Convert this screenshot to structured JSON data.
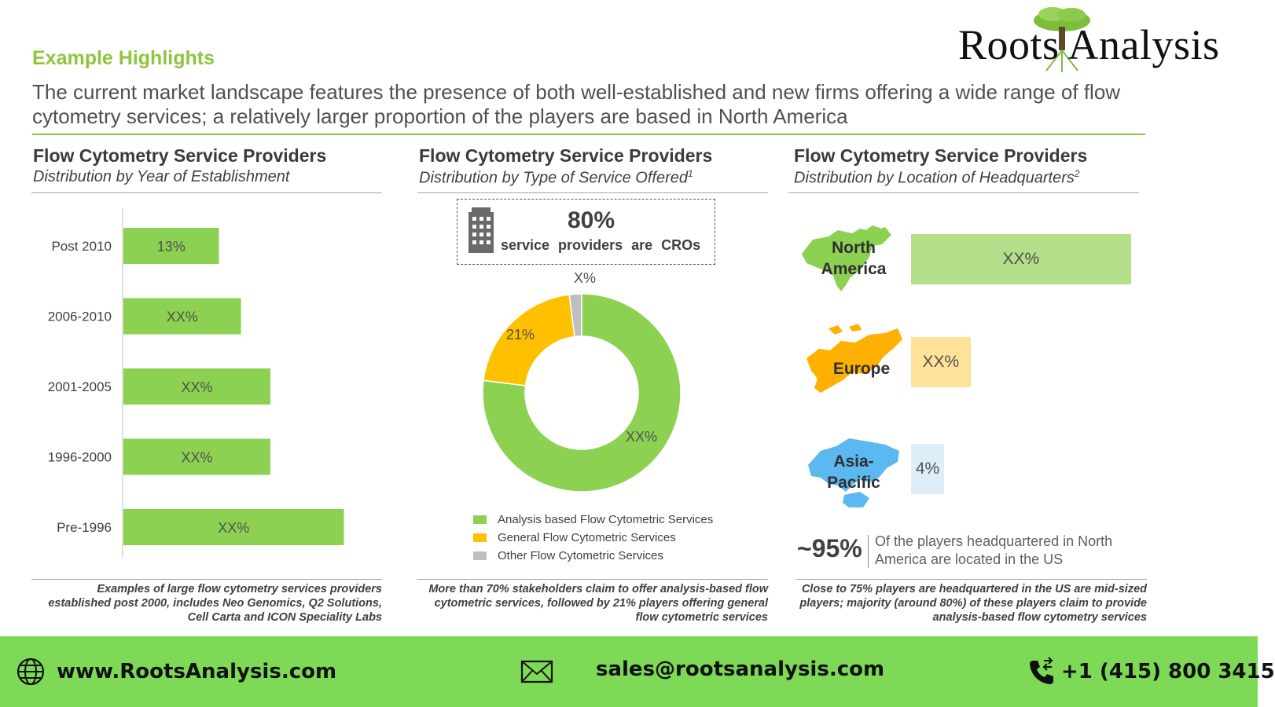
{
  "brand": {
    "name": "Roots Analysis"
  },
  "header": {
    "section_label": "Example Highlights",
    "headline": "The current market landscape features the presence of both well-established and new firms offering a wide range of flow cytometry services; a relatively larger proportion of the players are based in North America"
  },
  "panels": {
    "year": {
      "title": "Flow Cytometry Service Providers",
      "subtitle": "Distribution by Year of Establishment",
      "footnote": "Examples of large flow cytometry services providers established post 2000, includes Neo Genomics, Q2 Solutions, Cell Carta and ICON Speciality Labs"
    },
    "service": {
      "title": "Flow Cytometry Service Providers",
      "subtitle": "Distribution by Type of Service Offered",
      "subtitle_sup": "1",
      "callout_value": "80%",
      "callout_text": "service providers are CROs",
      "footnote": "More than 70% stakeholders claim to offer analysis-based flow cytometric services, followed by 21% players offering general flow cytometric services"
    },
    "location": {
      "title": "Flow Cytometry Service Providers",
      "subtitle": "Distribution by Location of Headquarters",
      "subtitle_sup": "2",
      "us_value": "~95%",
      "us_text": "Of the players headquartered in North America are located in the US",
      "footnote": "Close to 75% players are headquartered in the US are mid-sized players; majority (around 80%) of these players claim to provide analysis-based flow cytometry services"
    }
  },
  "chart_data": [
    {
      "type": "bar",
      "orientation": "horizontal",
      "categories": [
        "Post 2010",
        "2006-2010",
        "2001-2005",
        "1996-2000",
        "Pre-1996"
      ],
      "values": [
        13,
        16,
        20,
        20,
        30
      ],
      "labels": [
        "13%",
        "XX%",
        "XX%",
        "XX%",
        "XX%"
      ],
      "color": "#8cd152"
    },
    {
      "type": "pie",
      "style": "donut",
      "series": [
        {
          "name": "Analysis based Flow Cytometric Services",
          "value": 77,
          "label": "XX%",
          "color": "#8cd152"
        },
        {
          "name": "General Flow Cytometric Services",
          "value": 21,
          "label": "21%",
          "color": "#ffc000"
        },
        {
          "name": "Other Flow Cytometric Services",
          "value": 2,
          "label": "X%",
          "color": "#bfbfbf"
        }
      ],
      "legend": "bottom"
    },
    {
      "type": "bar",
      "orientation": "horizontal",
      "categories": [
        "North America",
        "Europe",
        "Asia-Pacific"
      ],
      "values": [
        74,
        20,
        4
      ],
      "labels": [
        "XX%",
        "XX%",
        "4%"
      ],
      "colors": [
        "#b3df8a",
        "#ffe29a",
        "#deeef8"
      ]
    }
  ],
  "regions": [
    {
      "line1": "North",
      "line2": "America",
      "map_color": "#8cd152",
      "map_icon": "north-america-map-icon"
    },
    {
      "line1": "Europe",
      "line2": "",
      "map_color": "#ffb000",
      "map_icon": "europe-map-icon"
    },
    {
      "line1": "Asia-",
      "line2": "Pacific",
      "map_color": "#5bb8f0",
      "map_icon": "asia-pacific-map-icon"
    }
  ],
  "footer": {
    "website": "www.RootsAnalysis.com",
    "email": "sales@rootsanalysis.com",
    "phone": "+1 (415) 800 3415",
    "icons": [
      "globe-icon",
      "mail-icon",
      "phone-icon"
    ]
  }
}
